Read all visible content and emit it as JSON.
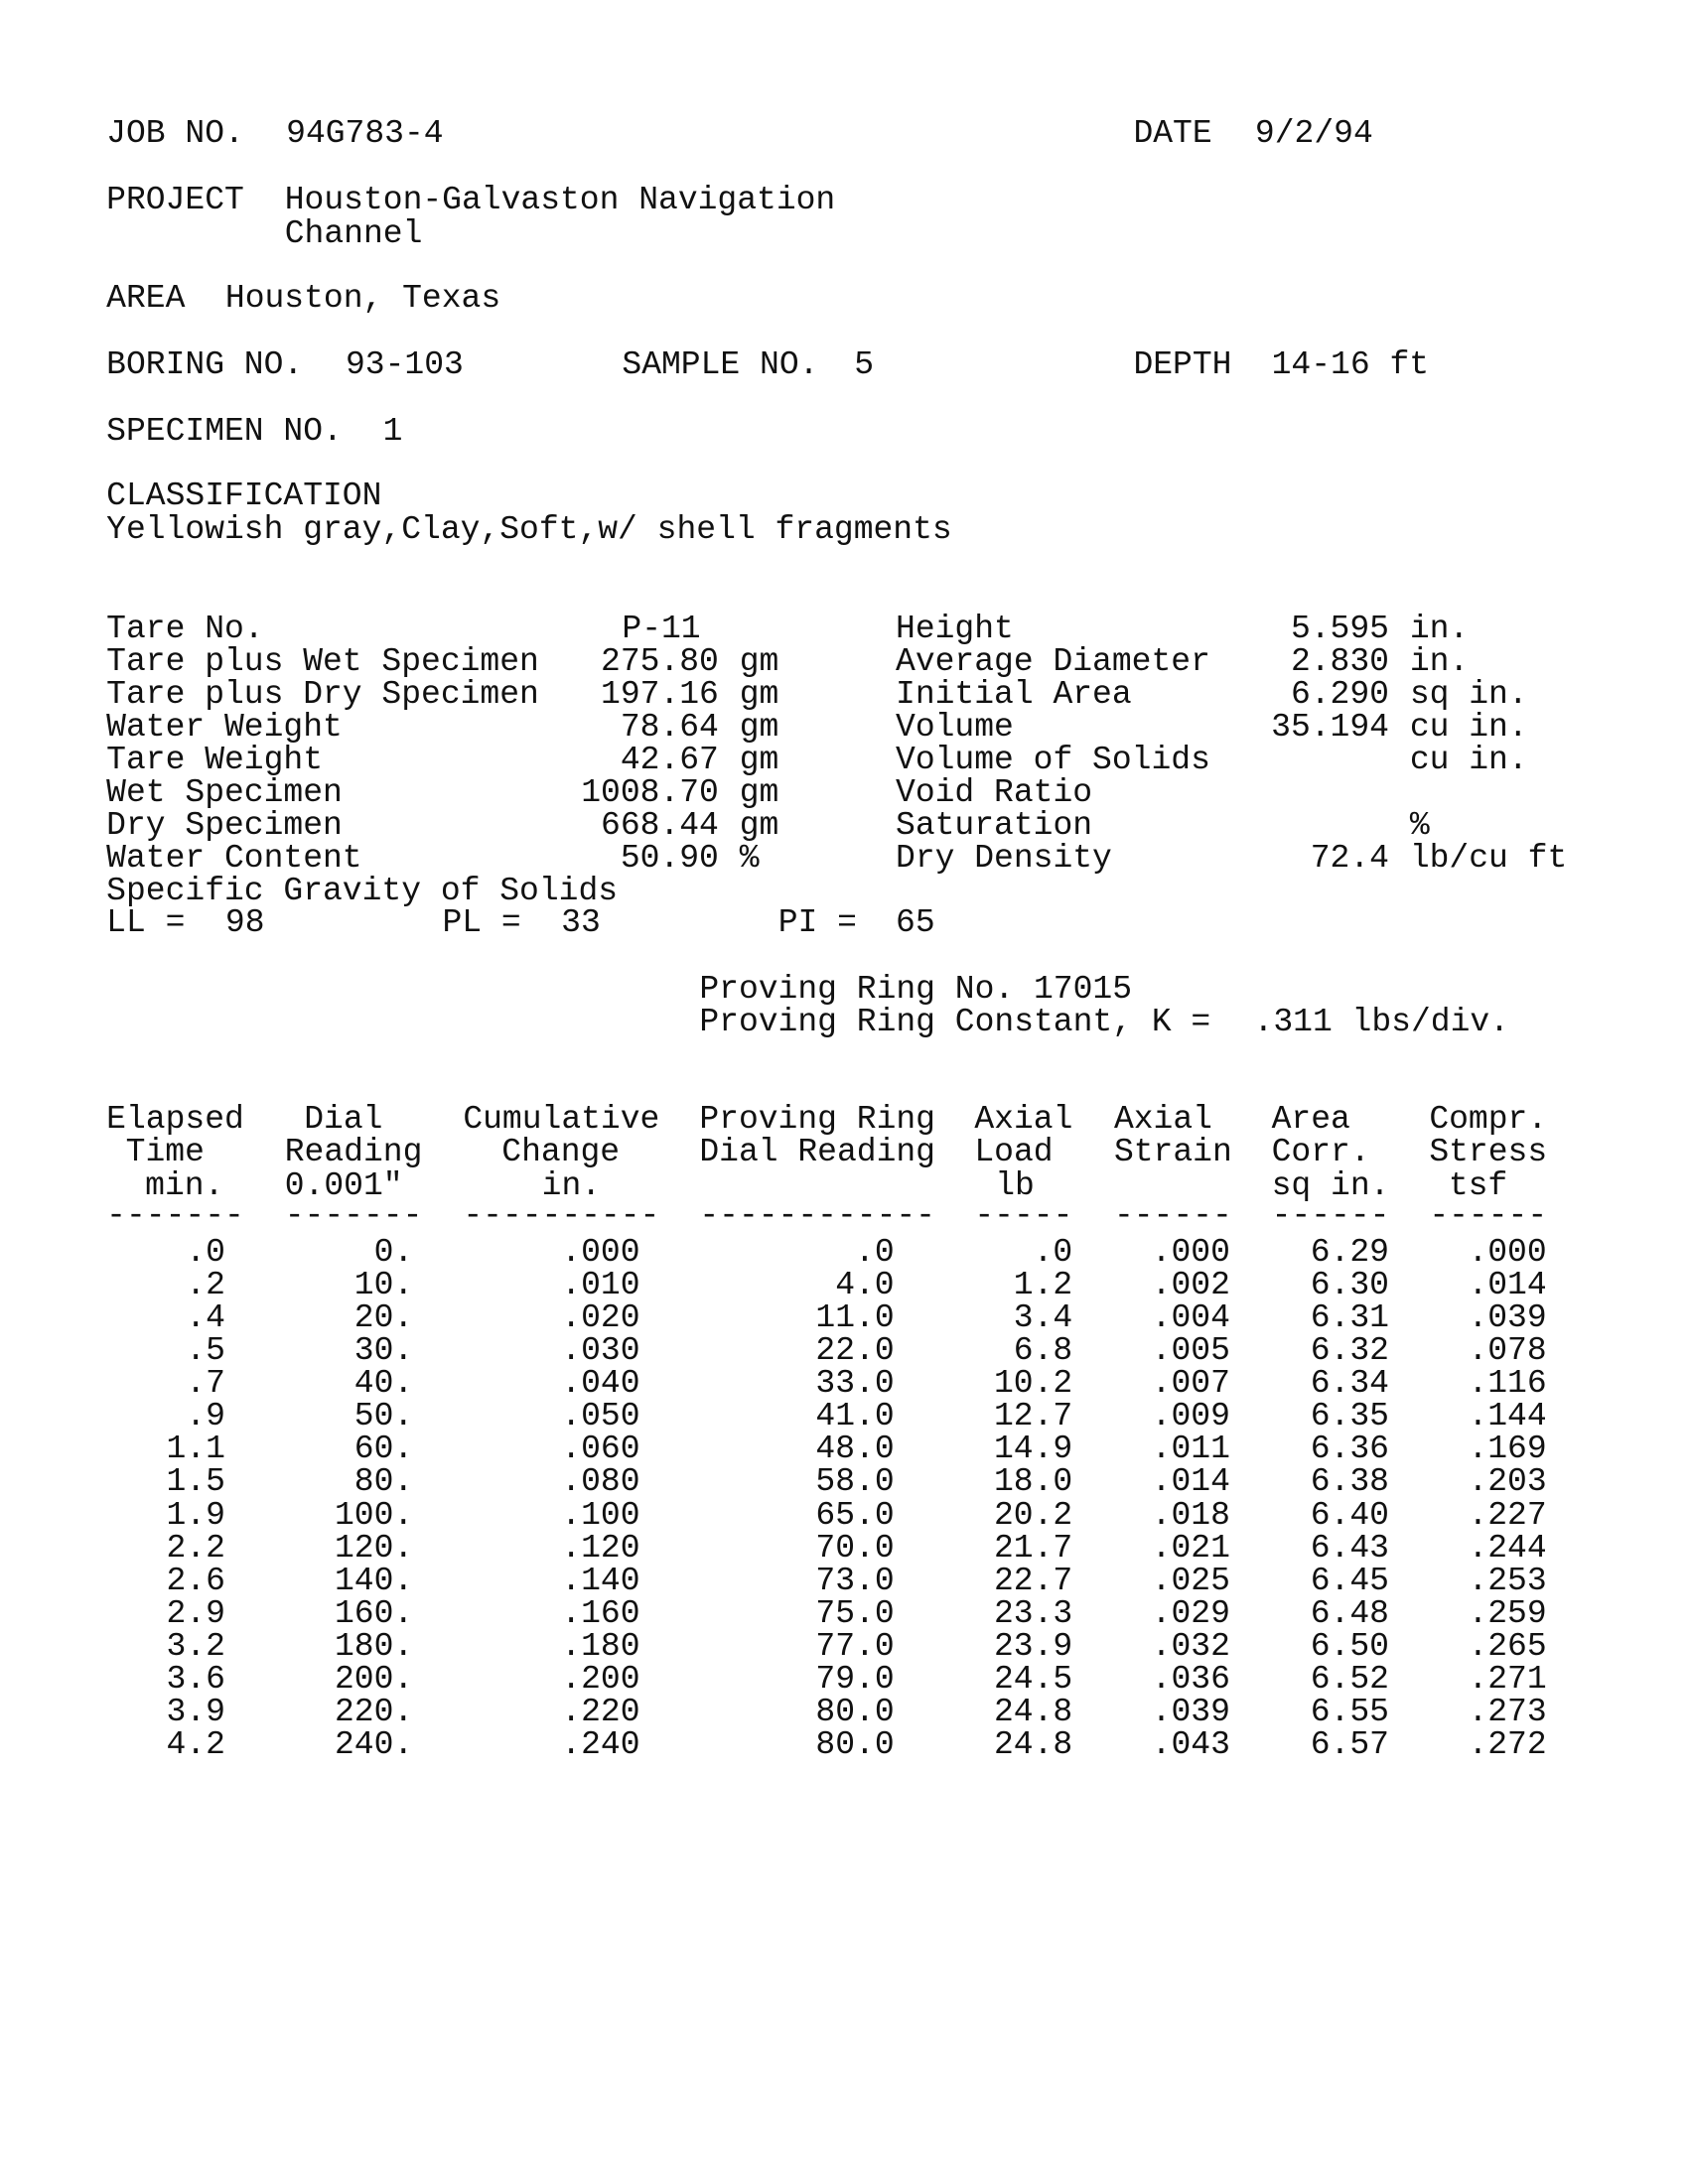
{
  "header": {
    "job_label": "JOB NO.",
    "job_no": "94G783-4",
    "date_label": "DATE",
    "date": "9/2/94",
    "project_label": "PROJECT",
    "project_line1": "Houston-Galvaston Navigation",
    "project_line2": "Channel",
    "area_label": "AREA",
    "area": "Houston, Texas",
    "boring_label": "BORING NO.",
    "boring_no": "93-103",
    "sample_label": "SAMPLE NO.",
    "sample_no": "5",
    "depth_label": "DEPTH",
    "depth": "14-16 ft",
    "specimen_label": "SPECIMEN NO.",
    "specimen_no": "1",
    "classification_label": "CLASSIFICATION",
    "classification": "Yellowish gray,Clay,Soft,w/ shell fragments"
  },
  "properties_left": [
    {
      "label": "Tare No.",
      "value": "P-11",
      "unit": ""
    },
    {
      "label": "Tare plus Wet Specimen",
      "value": "275.80",
      "unit": "gm"
    },
    {
      "label": "Tare plus Dry Specimen",
      "value": "197.16",
      "unit": "gm"
    },
    {
      "label": "Water Weight",
      "value": "78.64",
      "unit": "gm"
    },
    {
      "label": "Tare Weight",
      "value": "42.67",
      "unit": "gm"
    },
    {
      "label": "Wet Specimen",
      "value": "1008.70",
      "unit": "gm"
    },
    {
      "label": "Dry Specimen",
      "value": "668.44",
      "unit": "gm"
    },
    {
      "label": "Water Content",
      "value": "50.90",
      "unit": "%"
    },
    {
      "label": "Specific Gravity of Solids",
      "value": "",
      "unit": ""
    }
  ],
  "properties_right": [
    {
      "label": "Height",
      "value": "5.595",
      "unit": "in."
    },
    {
      "label": "Average Diameter",
      "value": "2.830",
      "unit": "in."
    },
    {
      "label": "Initial Area",
      "value": "6.290",
      "unit": "sq in."
    },
    {
      "label": "Volume",
      "value": "35.194",
      "unit": "cu in."
    },
    {
      "label": "Volume of Solids",
      "value": "",
      "unit": "cu in."
    },
    {
      "label": "Void Ratio",
      "value": "",
      "unit": ""
    },
    {
      "label": "Saturation",
      "value": "",
      "unit": "%"
    },
    {
      "label": "Dry Density",
      "value": "72.4",
      "unit": "lb/cu ft"
    }
  ],
  "limits": {
    "ll_label": "LL =",
    "ll": "98",
    "pl_label": "PL =",
    "pl": "33",
    "pi_label": "PI =",
    "pi": "65"
  },
  "proving_ring": {
    "number_line": "Proving Ring No. 17015",
    "constant_label": "Proving Ring Constant, K =",
    "constant": ".311 lbs/div."
  },
  "table": {
    "headers": [
      [
        "Elapsed",
        "Time",
        "min."
      ],
      [
        "Dial",
        "Reading",
        "0.001\""
      ],
      [
        "Cumulative",
        "Change",
        "in."
      ],
      [
        "Proving Ring",
        "Dial Reading",
        ""
      ],
      [
        "Axial",
        "Load",
        "lb"
      ],
      [
        "Axial",
        "Strain",
        ""
      ],
      [
        "Area",
        "Corr.",
        "sq in."
      ],
      [
        "Compr.",
        "Stress",
        "tsf"
      ]
    ],
    "separators": [
      "-------",
      "-------",
      "----------",
      "------------",
      "-----",
      "------",
      "------",
      "------"
    ],
    "rows": [
      [
        ".0",
        "0.",
        ".000",
        ".0",
        ".0",
        ".000",
        "6.29",
        ".000"
      ],
      [
        ".2",
        "10.",
        ".010",
        "4.0",
        "1.2",
        ".002",
        "6.30",
        ".014"
      ],
      [
        ".4",
        "20.",
        ".020",
        "11.0",
        "3.4",
        ".004",
        "6.31",
        ".039"
      ],
      [
        ".5",
        "30.",
        ".030",
        "22.0",
        "6.8",
        ".005",
        "6.32",
        ".078"
      ],
      [
        ".7",
        "40.",
        ".040",
        "33.0",
        "10.2",
        ".007",
        "6.34",
        ".116"
      ],
      [
        ".9",
        "50.",
        ".050",
        "41.0",
        "12.7",
        ".009",
        "6.35",
        ".144"
      ],
      [
        "1.1",
        "60.",
        ".060",
        "48.0",
        "14.9",
        ".011",
        "6.36",
        ".169"
      ],
      [
        "1.5",
        "80.",
        ".080",
        "58.0",
        "18.0",
        ".014",
        "6.38",
        ".203"
      ],
      [
        "1.9",
        "100.",
        ".100",
        "65.0",
        "20.2",
        ".018",
        "6.40",
        ".227"
      ],
      [
        "2.2",
        "120.",
        ".120",
        "70.0",
        "21.7",
        ".021",
        "6.43",
        ".244"
      ],
      [
        "2.6",
        "140.",
        ".140",
        "73.0",
        "22.7",
        ".025",
        "6.45",
        ".253"
      ],
      [
        "2.9",
        "160.",
        ".160",
        "75.0",
        "23.3",
        ".029",
        "6.48",
        ".259"
      ],
      [
        "3.2",
        "180.",
        ".180",
        "77.0",
        "23.9",
        ".032",
        "6.50",
        ".265"
      ],
      [
        "3.6",
        "200.",
        ".200",
        "79.0",
        "24.5",
        ".036",
        "6.52",
        ".271"
      ],
      [
        "3.9",
        "220.",
        ".220",
        "80.0",
        "24.8",
        ".039",
        "6.55",
        ".273"
      ],
      [
        "4.2",
        "240.",
        ".240",
        "80.0",
        "24.8",
        ".043",
        "6.57",
        ".272"
      ]
    ]
  }
}
